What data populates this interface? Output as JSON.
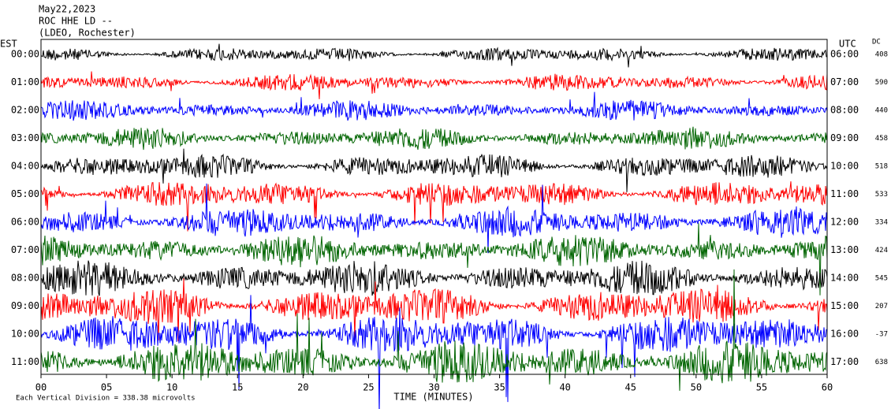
{
  "header": {
    "lines": [
      "May22,2023",
      "ROC HHE LD --",
      "(LDEO, Rochester)"
    ]
  },
  "left_axis": {
    "title": "EST",
    "labels": [
      "00:00",
      "01:00",
      "02:00",
      "03:00",
      "04:00",
      "05:00",
      "06:00",
      "07:00",
      "08:00",
      "09:00",
      "10:00",
      "11:00"
    ]
  },
  "right_axis": {
    "title": "UTC",
    "labels": [
      "06:00",
      "07:00",
      "08:00",
      "09:00",
      "10:00",
      "11:00",
      "12:00",
      "13:00",
      "14:00",
      "15:00",
      "16:00",
      "17:00"
    ]
  },
  "dc": {
    "title": "DC",
    "values": [
      "408",
      "590",
      "440",
      "458",
      "518",
      "533",
      "334",
      "424",
      "545",
      "207",
      "-37",
      "638"
    ]
  },
  "x_axis": {
    "title": "TIME (MINUTES)",
    "ticks": [
      "00",
      "05",
      "10",
      "15",
      "20",
      "25",
      "30",
      "35",
      "40",
      "45",
      "50",
      "55",
      "60"
    ]
  },
  "footer": "Each Vertical Division = 338.38 microvolts",
  "trace_colors": [
    "#000000",
    "#ff0000",
    "#0000ff",
    "#006400"
  ]
}
